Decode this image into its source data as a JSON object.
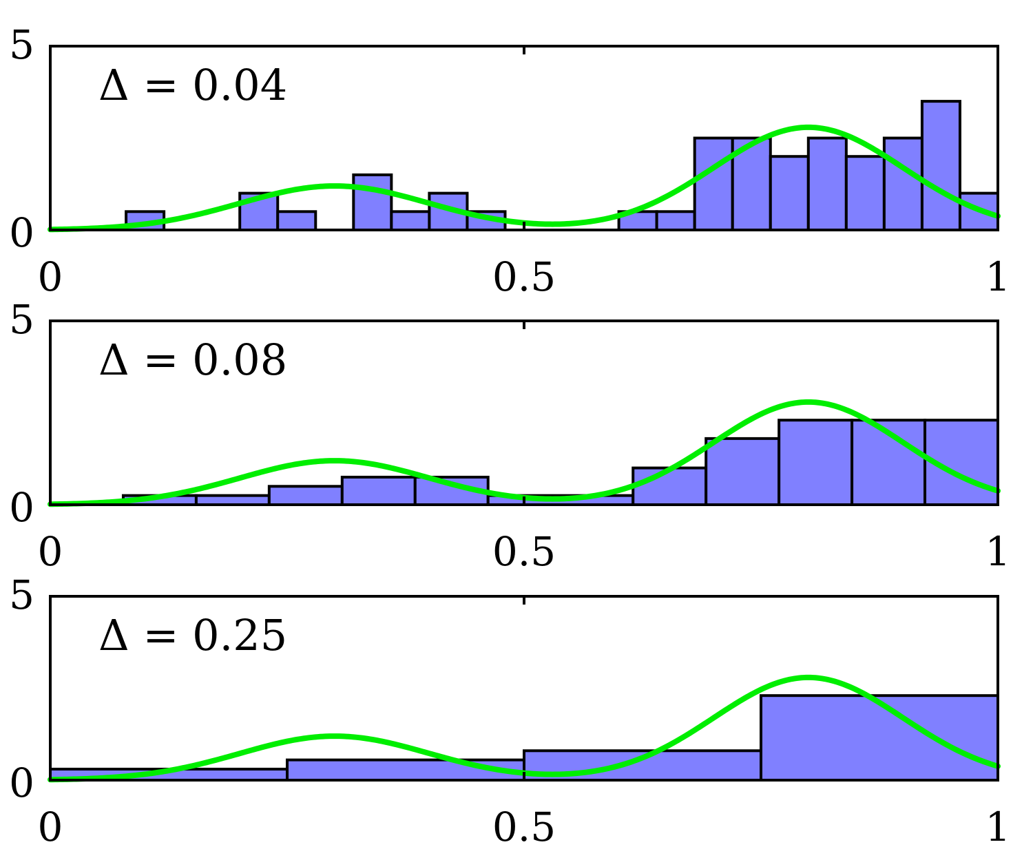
{
  "chart_data": [
    {
      "type": "bar",
      "title": "",
      "annotation": "Δ = 0.04",
      "xlim": [
        0,
        1
      ],
      "ylim": [
        0,
        5
      ],
      "xticks": [
        "0",
        "0.5",
        "1"
      ],
      "yticks": [
        "0",
        "5"
      ],
      "bin_width": 0.04,
      "bins": [
        {
          "x0": 0.08,
          "x1": 0.12,
          "value": 0.5
        },
        {
          "x0": 0.2,
          "x1": 0.24,
          "value": 1.0
        },
        {
          "x0": 0.24,
          "x1": 0.28,
          "value": 0.5
        },
        {
          "x0": 0.32,
          "x1": 0.36,
          "value": 1.5
        },
        {
          "x0": 0.36,
          "x1": 0.4,
          "value": 0.5
        },
        {
          "x0": 0.4,
          "x1": 0.44,
          "value": 1.0
        },
        {
          "x0": 0.44,
          "x1": 0.48,
          "value": 0.5
        },
        {
          "x0": 0.6,
          "x1": 0.64,
          "value": 0.5
        },
        {
          "x0": 0.64,
          "x1": 0.68,
          "value": 0.5
        },
        {
          "x0": 0.68,
          "x1": 0.72,
          "value": 2.5
        },
        {
          "x0": 0.72,
          "x1": 0.76,
          "value": 2.5
        },
        {
          "x0": 0.76,
          "x1": 0.8,
          "value": 2.0
        },
        {
          "x0": 0.8,
          "x1": 0.84,
          "value": 2.5
        },
        {
          "x0": 0.84,
          "x1": 0.88,
          "value": 2.0
        },
        {
          "x0": 0.88,
          "x1": 0.92,
          "value": 2.5
        },
        {
          "x0": 0.92,
          "x1": 0.96,
          "value": 3.5
        },
        {
          "x0": 0.96,
          "x1": 1.0,
          "value": 1.0
        }
      ],
      "curve_color": "#00ee00",
      "bar_color": "#8080ff"
    },
    {
      "type": "bar",
      "title": "",
      "annotation": "Δ = 0.08",
      "xlim": [
        0,
        1
      ],
      "ylim": [
        0,
        5
      ],
      "xticks": [
        "0",
        "0.5",
        "1"
      ],
      "yticks": [
        "0",
        "5"
      ],
      "bin_width": 0.08,
      "bins": [
        {
          "x0": 0.077,
          "x1": 0.154,
          "value": 0.25
        },
        {
          "x0": 0.154,
          "x1": 0.231,
          "value": 0.25
        },
        {
          "x0": 0.231,
          "x1": 0.308,
          "value": 0.5
        },
        {
          "x0": 0.308,
          "x1": 0.385,
          "value": 0.75
        },
        {
          "x0": 0.385,
          "x1": 0.462,
          "value": 0.75
        },
        {
          "x0": 0.462,
          "x1": 0.615,
          "value": 0.25
        },
        {
          "x0": 0.615,
          "x1": 0.692,
          "value": 1.0
        },
        {
          "x0": 0.692,
          "x1": 0.769,
          "value": 1.8
        },
        {
          "x0": 0.769,
          "x1": 0.846,
          "value": 2.3
        },
        {
          "x0": 0.846,
          "x1": 0.923,
          "value": 2.3
        },
        {
          "x0": 0.923,
          "x1": 1.0,
          "value": 2.3
        }
      ],
      "curve_color": "#00ee00",
      "bar_color": "#8080ff"
    },
    {
      "type": "bar",
      "title": "",
      "annotation": "Δ = 0.25",
      "xlim": [
        0,
        1
      ],
      "ylim": [
        0,
        5
      ],
      "xticks": [
        "0",
        "0.5",
        "1"
      ],
      "yticks": [
        "0",
        "5"
      ],
      "bin_width": 0.25,
      "bins": [
        {
          "x0": 0.0,
          "x1": 0.25,
          "value": 0.3
        },
        {
          "x0": 0.25,
          "x1": 0.5,
          "value": 0.55
        },
        {
          "x0": 0.5,
          "x1": 0.75,
          "value": 0.8
        },
        {
          "x0": 0.75,
          "x1": 1.0,
          "value": 2.3
        }
      ],
      "curve_color": "#00ee00",
      "bar_color": "#8080ff"
    }
  ],
  "density_curve": {
    "components": [
      {
        "weight": 0.3,
        "mean": 0.3,
        "sd": 0.1
      },
      {
        "weight": 0.7,
        "mean": 0.8,
        "sd": 0.1
      }
    ]
  }
}
